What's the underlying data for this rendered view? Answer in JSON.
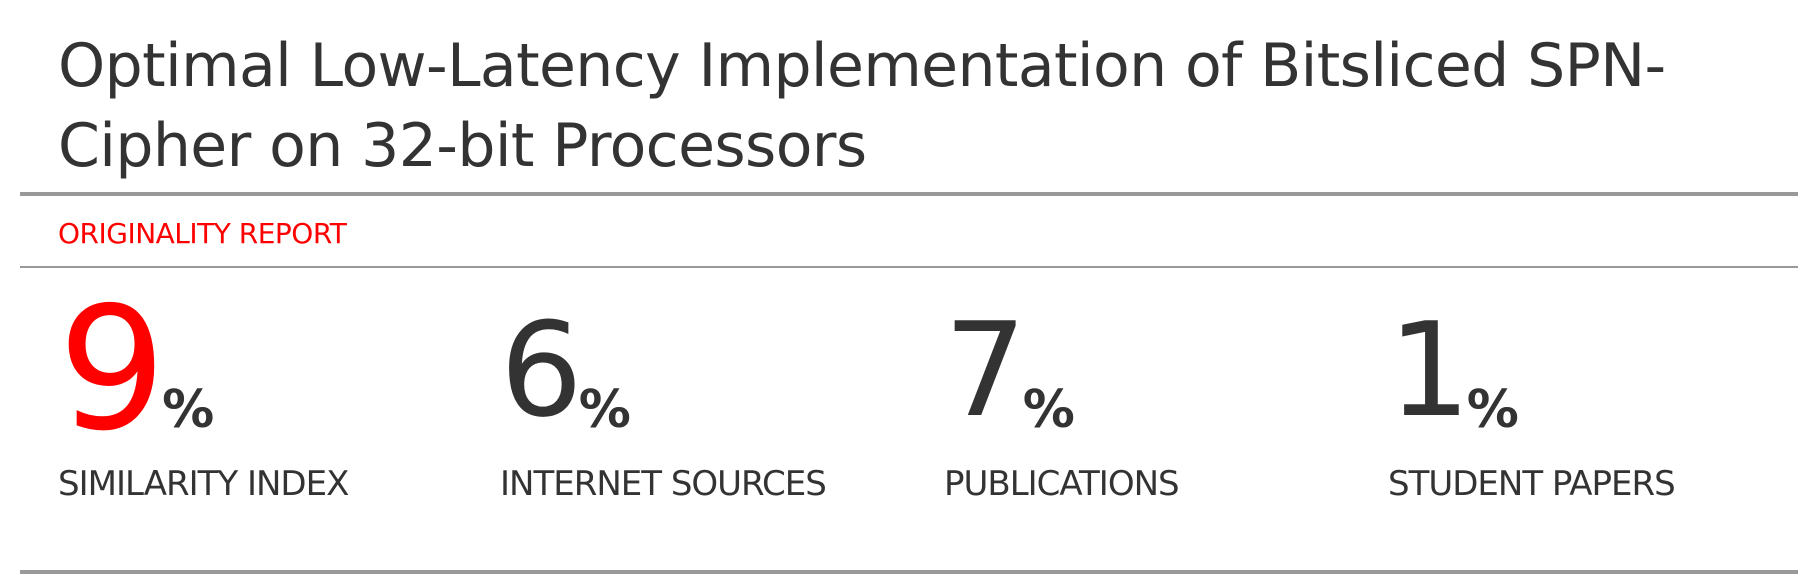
{
  "document": {
    "title": "Optimal Low-Latency Implementation of Bitsliced SPN-Cipher on 32-bit Processors",
    "report_label": "ORIGINALITY REPORT",
    "accent_color": "#ff0000",
    "stats": [
      {
        "value": "9",
        "unit": "%",
        "label": "SIMILARITY INDEX"
      },
      {
        "value": "6",
        "unit": "%",
        "label": "INTERNET SOURCES"
      },
      {
        "value": "7",
        "unit": "%",
        "label": "PUBLICATIONS"
      },
      {
        "value": "1",
        "unit": "%",
        "label": "STUDENT PAPERS"
      }
    ]
  }
}
